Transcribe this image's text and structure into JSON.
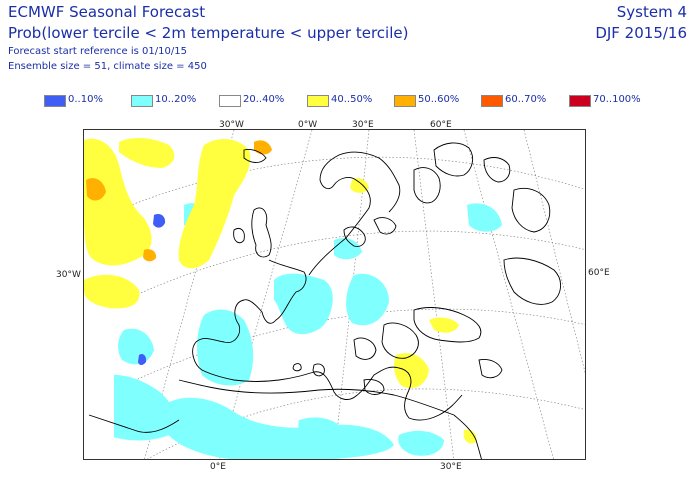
{
  "header": {
    "title": "ECMWF Seasonal Forecast",
    "subtitle": "Prob(lower tercile < 2m temperature < upper tercile)",
    "start_ref": "Forecast start reference is 01/10/15",
    "ensemble": "Ensemble size = 51, climate size = 450",
    "system": "System 4",
    "period": "DJF 2015/16"
  },
  "legend": [
    {
      "label": "0..10%",
      "color": "#3f5ef5"
    },
    {
      "label": "10..20%",
      "color": "#80ffff"
    },
    {
      "label": "20..40%",
      "color": "#ffffff"
    },
    {
      "label": "40..50%",
      "color": "#ffff40"
    },
    {
      "label": "50..60%",
      "color": "#ffb000"
    },
    {
      "label": "60..70%",
      "color": "#ff5a00"
    },
    {
      "label": "70..100%",
      "color": "#cc0020"
    }
  ],
  "graticule_labels": {
    "top": [
      "30°W",
      "0°W",
      "30°E",
      "60°E"
    ],
    "left": [
      "30°W"
    ],
    "right": [
      "60°E"
    ],
    "bottom": [
      "0°E",
      "30°E"
    ]
  }
}
